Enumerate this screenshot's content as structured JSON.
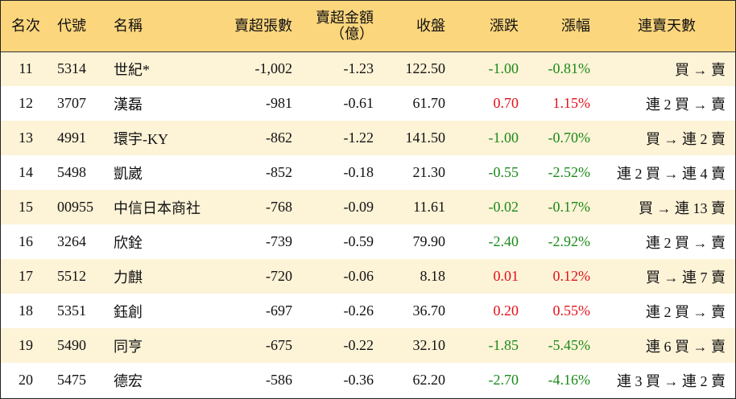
{
  "headers": {
    "rank": "名次",
    "code": "代號",
    "name": "名稱",
    "net_sell_lots": "賣超張數",
    "net_sell_amount_line1": "賣超金額",
    "net_sell_amount_line2": "（億）",
    "close": "收盤",
    "change": "漲跌",
    "change_pct": "漲幅",
    "streak": "連賣天數"
  },
  "colors": {
    "header_bg": "#fcd67d",
    "stripe_bg": "#fdf3d7",
    "up": "#e3101a",
    "down": "#1a8a1a"
  },
  "rows": [
    {
      "rank": "11",
      "code": "5314",
      "name": "世紀*",
      "lots": "-1,002",
      "amount": "-1.23",
      "close": "122.50",
      "change": "-1.00",
      "pct": "-0.81%",
      "streak": "買 → 賣",
      "dir": "down"
    },
    {
      "rank": "12",
      "code": "3707",
      "name": "漢磊",
      "lots": "-981",
      "amount": "-0.61",
      "close": "61.70",
      "change": "0.70",
      "pct": "1.15%",
      "streak": "連 2 買 → 賣",
      "dir": "up"
    },
    {
      "rank": "13",
      "code": "4991",
      "name": "環宇-KY",
      "lots": "-862",
      "amount": "-1.22",
      "close": "141.50",
      "change": "-1.00",
      "pct": "-0.70%",
      "streak": "買 → 連 2 賣",
      "dir": "down"
    },
    {
      "rank": "14",
      "code": "5498",
      "name": "凱崴",
      "lots": "-852",
      "amount": "-0.18",
      "close": "21.30",
      "change": "-0.55",
      "pct": "-2.52%",
      "streak": "連 2 買 → 連 4 賣",
      "dir": "down"
    },
    {
      "rank": "15",
      "code": "00955",
      "name": "中信日本商社",
      "lots": "-768",
      "amount": "-0.09",
      "close": "11.61",
      "change": "-0.02",
      "pct": "-0.17%",
      "streak": "買 → 連 13 賣",
      "dir": "down"
    },
    {
      "rank": "16",
      "code": "3264",
      "name": "欣銓",
      "lots": "-739",
      "amount": "-0.59",
      "close": "79.90",
      "change": "-2.40",
      "pct": "-2.92%",
      "streak": "連 2 買 → 賣",
      "dir": "down"
    },
    {
      "rank": "17",
      "code": "5512",
      "name": "力麒",
      "lots": "-720",
      "amount": "-0.06",
      "close": "8.18",
      "change": "0.01",
      "pct": "0.12%",
      "streak": "買 → 連 7 賣",
      "dir": "up"
    },
    {
      "rank": "18",
      "code": "5351",
      "name": "鈺創",
      "lots": "-697",
      "amount": "-0.26",
      "close": "36.70",
      "change": "0.20",
      "pct": "0.55%",
      "streak": "連 2 買 → 賣",
      "dir": "up"
    },
    {
      "rank": "19",
      "code": "5490",
      "name": "同亨",
      "lots": "-675",
      "amount": "-0.22",
      "close": "32.10",
      "change": "-1.85",
      "pct": "-5.45%",
      "streak": "連 6 買 → 賣",
      "dir": "down"
    },
    {
      "rank": "20",
      "code": "5475",
      "name": "德宏",
      "lots": "-586",
      "amount": "-0.36",
      "close": "62.20",
      "change": "-2.70",
      "pct": "-4.16%",
      "streak": "連 3 買 → 連 2 賣",
      "dir": "down"
    }
  ]
}
